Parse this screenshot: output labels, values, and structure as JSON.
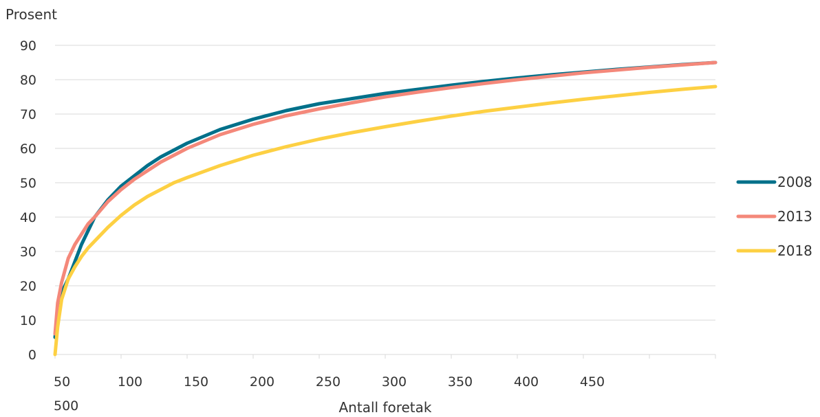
{
  "chart_data": {
    "type": "line",
    "ylabel": "Prosent",
    "xlabel": "Antall foretak",
    "ylim": [
      0,
      90
    ],
    "yticks": [
      0,
      10,
      20,
      30,
      40,
      50,
      60,
      70,
      80,
      90
    ],
    "xlim": [
      0,
      500
    ],
    "xticks": [
      0,
      50,
      100,
      150,
      200,
      250,
      300,
      350,
      400,
      450,
      500
    ],
    "x_tick_labels": [
      "50",
      "100",
      "150",
      "200",
      "250",
      "300",
      "350",
      "400",
      "450",
      "500"
    ],
    "grid": true,
    "legend_position": "right",
    "x": [
      0,
      2,
      5,
      10,
      15,
      20,
      25,
      30,
      40,
      50,
      60,
      70,
      80,
      90,
      100,
      125,
      150,
      175,
      200,
      225,
      250,
      275,
      300,
      325,
      350,
      375,
      400,
      425,
      450,
      475,
      500
    ],
    "series": [
      {
        "name": "2008",
        "color": "#00708a",
        "values": [
          5,
          12,
          18,
          22,
          27,
          32,
          36,
          40,
          45,
          49,
          52,
          55,
          57.5,
          59.5,
          61.5,
          65.5,
          68.5,
          71,
          73,
          74.5,
          76,
          77.2,
          78.4,
          79.5,
          80.5,
          81.4,
          82.2,
          83,
          83.7,
          84.4,
          85
        ]
      },
      {
        "name": "2013",
        "color": "#f4887a",
        "values": [
          6,
          15,
          21,
          28,
          32,
          35,
          38,
          40,
          44.5,
          48,
          51,
          53.5,
          56,
          58,
          60,
          64,
          67,
          69.5,
          71.5,
          73.3,
          75,
          76.4,
          77.7,
          78.9,
          80,
          81,
          82,
          82.8,
          83.6,
          84.3,
          85
        ]
      },
      {
        "name": "2018",
        "color": "#fdd043",
        "values": [
          0,
          8,
          16,
          22,
          25.5,
          28.5,
          31,
          33,
          37,
          40.5,
          43.5,
          46,
          48,
          50,
          51.5,
          55,
          58,
          60.5,
          62.7,
          64.6,
          66.3,
          67.9,
          69.4,
          70.8,
          72,
          73.2,
          74.3,
          75.3,
          76.3,
          77.2,
          78
        ]
      }
    ]
  }
}
